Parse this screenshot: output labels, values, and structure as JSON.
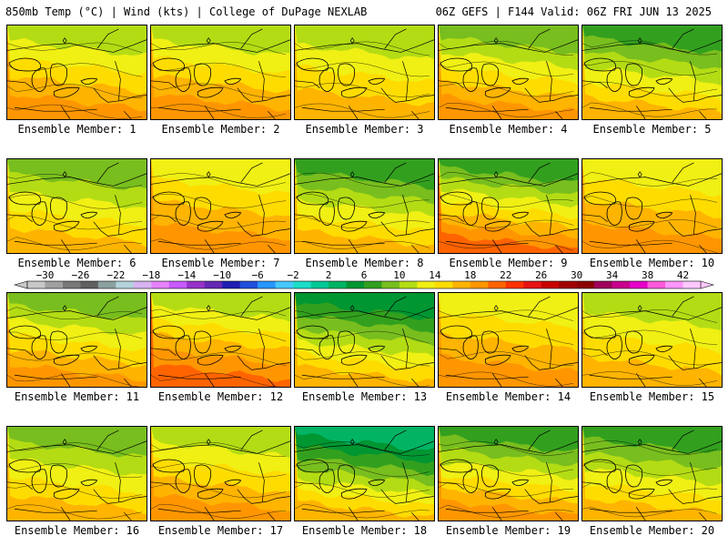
{
  "header": {
    "left": "850mb Temp (°C) | Wind (kts) | College of DuPage NEXLAB",
    "right": "06Z GEFS | F144 Valid: 06Z FRI JUN 13 2025"
  },
  "colors": {
    "scale": [
      "#c8c8c8",
      "#a0a0a0",
      "#787878",
      "#606060",
      "#8ca0a0",
      "#b4d2dc",
      "#d7b4f0",
      "#e682ff",
      "#c85aff",
      "#9632c8",
      "#6428b4",
      "#1e1eb4",
      "#1e50dc",
      "#2896ff",
      "#46c8ff",
      "#1edcc8",
      "#00c896",
      "#00b464",
      "#009632",
      "#32a01e",
      "#78be1e",
      "#b4dc14",
      "#f0f014",
      "#ffdc00",
      "#ffb400",
      "#ff9600",
      "#ff6400",
      "#ff3200",
      "#e61414",
      "#c80000",
      "#a00000",
      "#8c0000",
      "#a0005a",
      "#c8008c",
      "#e600c8",
      "#ff5adc",
      "#ff96ff",
      "#ffc8ff"
    ],
    "border": "#000000"
  },
  "colorbar": {
    "ticks": [
      "−30",
      "−26",
      "−22",
      "−18",
      "−14",
      "−10",
      "−6",
      "−2",
      "2",
      "6",
      "10",
      "14",
      "18",
      "22",
      "26",
      "30",
      "34",
      "38",
      "42"
    ],
    "min": -32,
    "max": 44
  },
  "panels": [
    {
      "label": "Ensemble Member: 1",
      "north_temp": 9,
      "south_temp": 18
    },
    {
      "label": "Ensemble Member: 2",
      "north_temp": 10,
      "south_temp": 19
    },
    {
      "label": "Ensemble Member: 3",
      "north_temp": 11,
      "south_temp": 17
    },
    {
      "label": "Ensemble Member: 4",
      "north_temp": 8,
      "south_temp": 18
    },
    {
      "label": "Ensemble Member: 5",
      "north_temp": 5,
      "south_temp": 16
    },
    {
      "label": "Ensemble Member: 6",
      "north_temp": 8,
      "south_temp": 16
    },
    {
      "label": "Ensemble Member: 7",
      "north_temp": 11,
      "south_temp": 18
    },
    {
      "label": "Ensemble Member: 8",
      "north_temp": 7,
      "south_temp": 17
    },
    {
      "label": "Ensemble Member: 9",
      "north_temp": 5,
      "south_temp": 20
    },
    {
      "label": "Ensemble Member: 10",
      "north_temp": 12,
      "south_temp": 19
    },
    {
      "label": "Ensemble Member: 11",
      "north_temp": 7,
      "south_temp": 18
    },
    {
      "label": "Ensemble Member: 12",
      "north_temp": 10,
      "south_temp": 20
    },
    {
      "label": "Ensemble Member: 13",
      "north_temp": 4,
      "south_temp": 16
    },
    {
      "label": "Ensemble Member: 14",
      "north_temp": 12,
      "south_temp": 19
    },
    {
      "label": "Ensemble Member: 15",
      "north_temp": 11,
      "south_temp": 17
    },
    {
      "label": "Ensemble Member: 16",
      "north_temp": 7,
      "south_temp": 16
    },
    {
      "label": "Ensemble Member: 17",
      "north_temp": 11,
      "south_temp": 19
    },
    {
      "label": "Ensemble Member: 18",
      "north_temp": 3,
      "south_temp": 17
    },
    {
      "label": "Ensemble Member: 19",
      "north_temp": 5,
      "south_temp": 18
    },
    {
      "label": "Ensemble Member: 20",
      "north_temp": 6,
      "south_temp": 16
    }
  ]
}
